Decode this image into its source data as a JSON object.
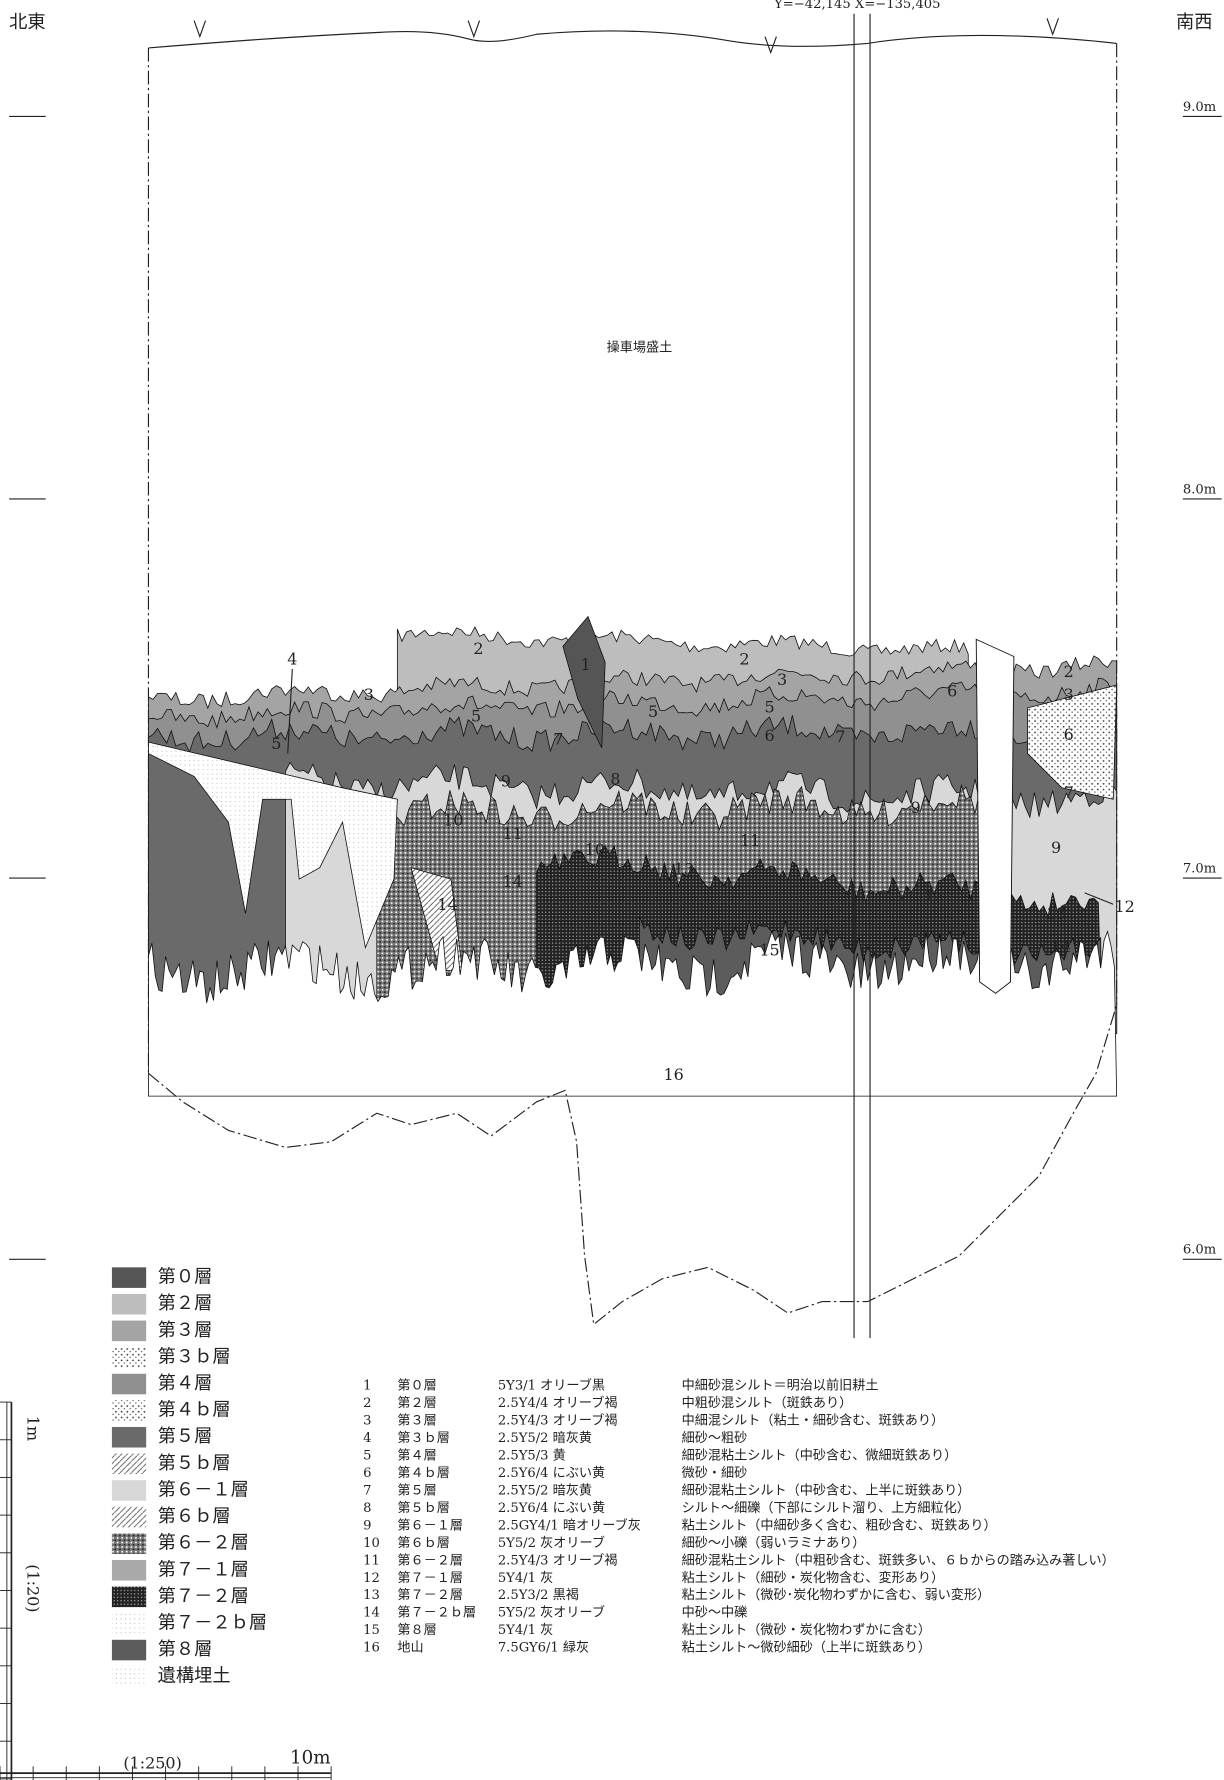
{
  "header": {
    "left": "北東",
    "right": "南西",
    "coord": "Y=−42,145 X=−135,405"
  },
  "elevations": [
    "9.0m",
    "8.0m",
    "7.0m",
    "6.0m"
  ],
  "fill_label": "操車場盛土",
  "section_labels": [
    "1",
    "2",
    "2",
    "2",
    "3",
    "3",
    "3",
    "4",
    "5",
    "5",
    "5",
    "5",
    "6",
    "6",
    "6",
    "7",
    "7",
    "7",
    "8",
    "9",
    "9",
    "9",
    "10",
    "10",
    "11",
    "11",
    "12",
    "12",
    "13",
    "13",
    "14",
    "14",
    "14",
    "15",
    "16"
  ],
  "legend": [
    "第０層",
    "第２層",
    "第３層",
    "第３ｂ層",
    "第４層",
    "第４ｂ層",
    "第５層",
    "第５ｂ層",
    "第６－１層",
    "第６ｂ層",
    "第６－２層",
    "第７－１層",
    "第７－２層",
    "第７－２ｂ層",
    "第８層",
    "遺構埋土"
  ],
  "table": {
    "rows": [
      [
        "1",
        "第０層",
        "5Y3/1 オリーブ黒",
        "中細砂混シルト＝明治以前旧耕土"
      ],
      [
        "2",
        "第２層",
        "2.5Y4/4 オリーブ褐",
        "中粗砂混シルト（斑鉄あり）"
      ],
      [
        "3",
        "第３層",
        "2.5Y4/3 オリーブ褐",
        "中細混シルト（粘土・細砂含む、斑鉄あり）"
      ],
      [
        "4",
        "第３ｂ層",
        "2.5Y5/2 暗灰黄",
        "細砂～粗砂"
      ],
      [
        "5",
        "第４層",
        "2.5Y5/3 黄",
        "細砂混粘土シルト（中砂含む、微細斑鉄あり）"
      ],
      [
        "6",
        "第４ｂ層",
        "2.5Y6/4 にぶい黄",
        "微砂・細砂"
      ],
      [
        "7",
        "第５層",
        "2.5Y5/2 暗灰黄",
        "細砂混粘土シルト（中砂含む、上半に斑鉄あり）"
      ],
      [
        "8",
        "第５ｂ層",
        "2.5Y6/4 にぶい黄",
        "シルト～細礫（下部にシルト溜り、上方細粒化）"
      ],
      [
        "9",
        "第６－１層",
        "2.5GY4/1 暗オリーブ灰",
        "粘土シルト（中細砂多く含む、粗砂含む、斑鉄あり）"
      ],
      [
        "10",
        "第６ｂ層",
        "5Y5/2 灰オリーブ",
        "細砂～小礫（弱いラミナあり）"
      ],
      [
        "11",
        "第６－２層",
        "2.5Y4/3 オリーブ褐",
        "細砂混粘土シルト（中粗砂含む、斑鉄多い、６ｂからの踏み込み著しい）"
      ],
      [
        "12",
        "第７－１層",
        "5Y4/1 灰",
        "粘土シルト（細砂・炭化物含む、変形あり）"
      ],
      [
        "13",
        "第７－２層",
        "2.5Y3/2 黒褐",
        "粘土シルト（微砂･炭化物わずかに含む、弱い変形）"
      ],
      [
        "14",
        "第７－２ｂ層",
        "5Y5/2 灰オリーブ",
        "中砂～中礫"
      ],
      [
        "15",
        "第８層",
        "5Y4/1 灰",
        "粘土シルト（微砂・炭化物わずかに含む）"
      ],
      [
        "16",
        "地山",
        "7.5GY6/1 緑灰",
        "粘土シルト～微砂細砂（上半に斑鉄あり）"
      ]
    ]
  },
  "scale": {
    "vertical_unit": "1m",
    "vertical_ratio": "(1:20)",
    "horizontal_ratio": "(1:250)",
    "horizontal_unit": "10m"
  }
}
